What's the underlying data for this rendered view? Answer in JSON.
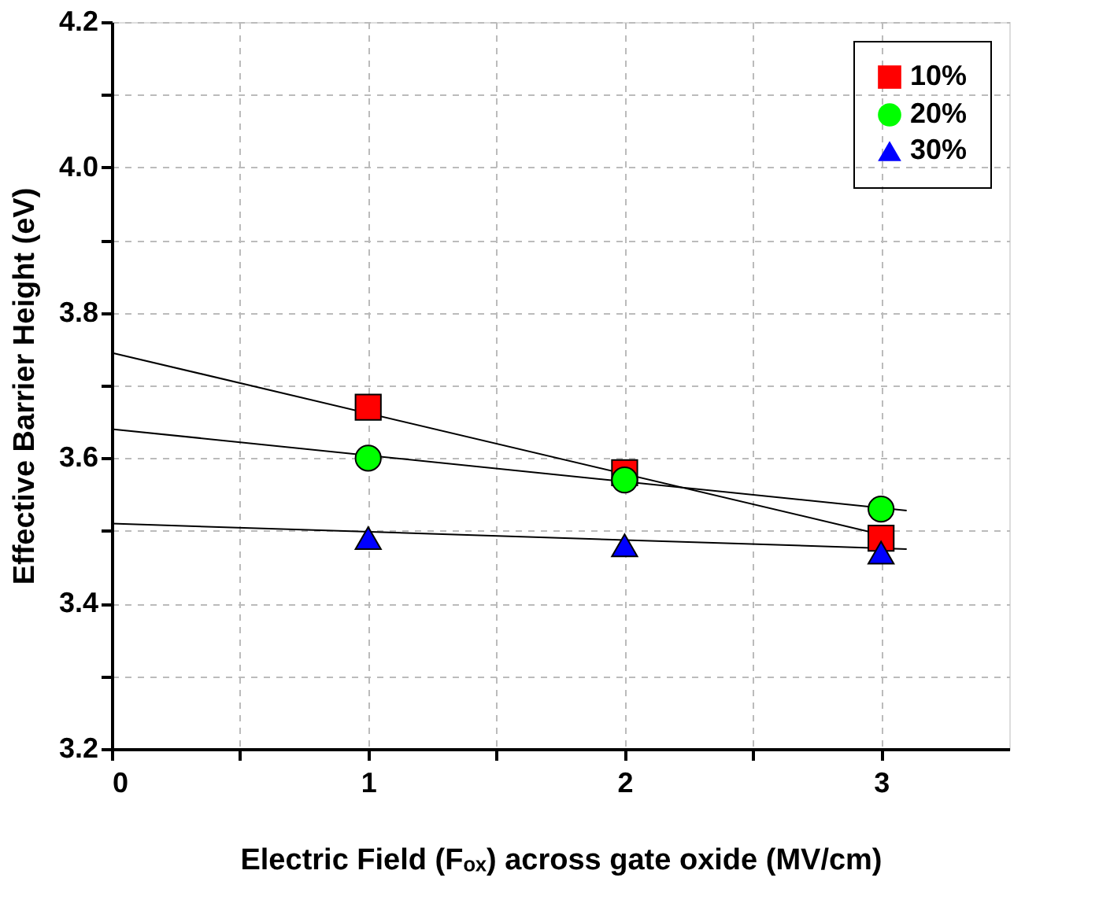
{
  "chart_data": {
    "type": "scatter",
    "xlabel": "Electric Field (Fₒₓ) across gate oxide (MV/cm)",
    "ylabel": "Effective Barrier Height (eV)",
    "xlim": [
      0,
      3.5
    ],
    "xticks": [
      0,
      {
        "value": 0.5,
        "label": null
      },
      1,
      {
        "value": 1.5,
        "label": null
      },
      2,
      {
        "value": 2.5,
        "label": null
      },
      3
    ],
    "ylim": [
      3.2,
      4.2
    ],
    "yticks": [
      3.2,
      {
        "value": 3.3,
        "label": null
      },
      3.4,
      {
        "value": 3.5,
        "label": null
      },
      3.6,
      {
        "value": 3.7,
        "label": null
      },
      3.8,
      {
        "value": 3.9,
        "label": null
      },
      {
        "value": 4.0,
        "label": "4.0"
      },
      {
        "value": 4.1,
        "label": null
      },
      4.2
    ],
    "grid": true,
    "legend": "top right",
    "series": [
      {
        "name": "10%",
        "color": "#ff0000",
        "marker": "square",
        "x": [
          1,
          2,
          3
        ],
        "values": [
          3.67,
          3.58,
          3.49
        ]
      },
      {
        "name": "20%",
        "color": "#00ff00",
        "marker": "circle",
        "x": [
          1,
          2,
          3
        ],
        "values": [
          3.6,
          3.57,
          3.53
        ]
      },
      {
        "name": "30%",
        "color": "#0000ff",
        "marker": "triangle",
        "x": [
          1,
          2,
          3
        ],
        "values": [
          3.49,
          3.48,
          3.47
        ]
      },
      {
        "type": "line",
        "color": "#000000",
        "x": [
          0,
          3
        ],
        "values": [
          3.745,
          3.495
        ]
      },
      {
        "type": "line",
        "color": "#000000",
        "x": [
          0,
          3.1
        ],
        "values": [
          3.64,
          3.528
        ]
      },
      {
        "type": "line",
        "color": "#000000",
        "x": [
          0,
          3.1
        ],
        "values": [
          3.51,
          3.475
        ]
      }
    ]
  }
}
